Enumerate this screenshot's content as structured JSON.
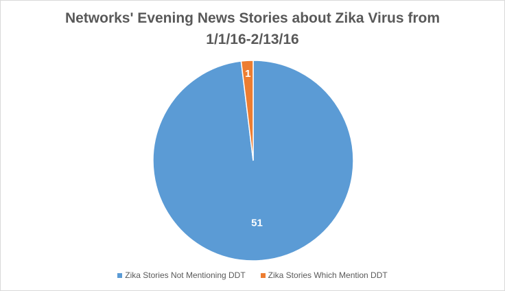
{
  "chart_data": {
    "type": "pie",
    "title_lines": [
      "Networks' Evening News Stories about Zika Virus from",
      "1/1/16-2/13/16"
    ],
    "categories": [
      "Zika Stories Not Mentioning DDT",
      "Zika Stories Which Mention DDT"
    ],
    "values": [
      51,
      1
    ],
    "data_labels": [
      "51",
      "1"
    ],
    "colors": [
      "#5b9bd5",
      "#ed7d31"
    ],
    "legend_position": "bottom",
    "start_angle_deg": 0,
    "direction": "clockwise-from-top, last slice ends at top"
  }
}
